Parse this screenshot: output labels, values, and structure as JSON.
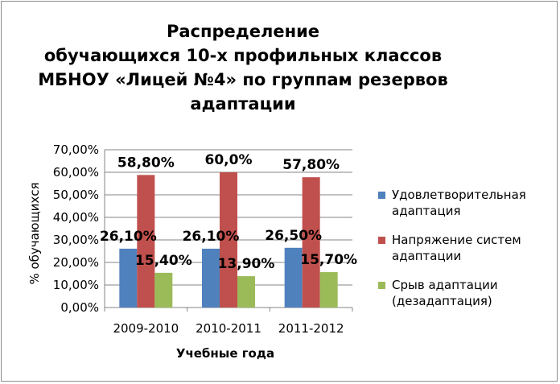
{
  "chart_data": {
    "type": "bar",
    "title_lines": [
      "Распределение",
      "обучающихся 10-х профильных классов",
      "МБНОУ «Лицей №4» по группам резервов",
      "адаптации"
    ],
    "xlabel": "Учебные года",
    "ylabel": "% обучающихся",
    "ylim": [
      0,
      70
    ],
    "y_ticks": [
      0,
      10,
      20,
      30,
      40,
      50,
      60,
      70
    ],
    "y_tick_labels": [
      "0,00%",
      "10,00%",
      "20,00%",
      "30,00%",
      "40,00%",
      "50,00%",
      "60,00%",
      "70,00%"
    ],
    "grid": true,
    "legend_position": "right",
    "categories": [
      "2009-2010",
      "2010-2011",
      "2011-2012"
    ],
    "series": [
      {
        "name": "Удовлетворительная адаптация",
        "legend_lines": [
          "Удовлетворительная",
          "адаптация"
        ],
        "color": "#4f81bd",
        "values": [
          26.1,
          26.1,
          26.5
        ],
        "labels": [
          "26,10%",
          "26,10%",
          "26,50%"
        ]
      },
      {
        "name": "Напряжение систем адаптации",
        "legend_lines": [
          "Напряжение систем",
          "адаптации"
        ],
        "color": "#c0504d",
        "values": [
          58.8,
          60.0,
          57.8
        ],
        "labels": [
          "58,80%",
          "60,0%",
          "57,80%"
        ]
      },
      {
        "name": "Срыв адаптации (дезадаптация)",
        "legend_lines": [
          "Срыв адаптации",
          "(дезадаптация)"
        ],
        "color": "#9bbb59",
        "values": [
          15.4,
          13.9,
          15.7
        ],
        "labels": [
          "15,40%",
          "13,90%",
          "15,70%"
        ]
      }
    ]
  }
}
